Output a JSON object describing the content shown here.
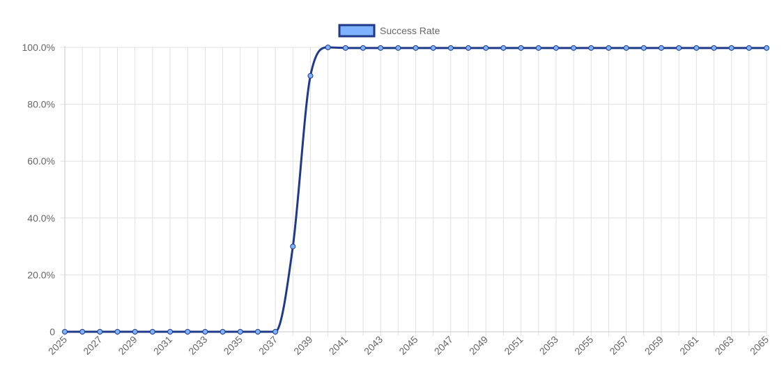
{
  "chart_data": {
    "type": "line",
    "title": "",
    "xlabel": "",
    "ylabel": "",
    "x": [
      2025,
      2026,
      2027,
      2028,
      2029,
      2030,
      2031,
      2032,
      2033,
      2034,
      2035,
      2036,
      2037,
      2038,
      2039,
      2040,
      2041,
      2042,
      2043,
      2044,
      2045,
      2046,
      2047,
      2048,
      2049,
      2050,
      2051,
      2052,
      2053,
      2054,
      2055,
      2056,
      2057,
      2058,
      2059,
      2060,
      2061,
      2062,
      2063,
      2064,
      2065
    ],
    "x_tick_labels": [
      "2025",
      "2027",
      "2029",
      "2031",
      "2033",
      "2035",
      "2037",
      "2039",
      "2041",
      "2043",
      "2045",
      "2047",
      "2049",
      "2051",
      "2053",
      "2055",
      "2057",
      "2059",
      "2061",
      "2063",
      "2065"
    ],
    "y_tick_labels": [
      "0",
      "20.0%",
      "40.0%",
      "60.0%",
      "80.0%",
      "100.0%"
    ],
    "xlim": [
      2025,
      2065
    ],
    "ylim": [
      0,
      100
    ],
    "grid": true,
    "legend_position": "top",
    "series": [
      {
        "name": "Success Rate",
        "line_color": "#1f3a8a",
        "point_fill": "#7fb2ff",
        "values": [
          0,
          0,
          0,
          0,
          0,
          0,
          0,
          0,
          0,
          0,
          0,
          0,
          0,
          30,
          90,
          100,
          99.8,
          99.8,
          99.8,
          99.8,
          99.8,
          99.8,
          99.8,
          99.8,
          99.8,
          99.8,
          99.8,
          99.8,
          99.8,
          99.8,
          99.8,
          99.8,
          99.8,
          99.8,
          99.8,
          99.8,
          99.8,
          99.8,
          99.8,
          99.8,
          99.8
        ]
      }
    ]
  }
}
